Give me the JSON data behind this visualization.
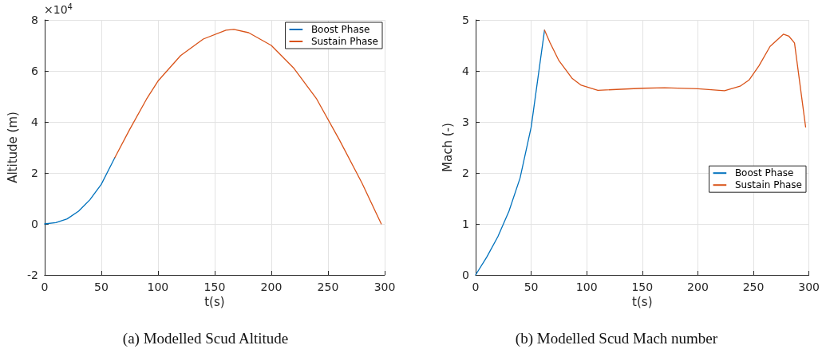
{
  "chart_data": [
    {
      "type": "line",
      "title": "(a) Modelled Scud Altitude",
      "xlabel": "t(s)",
      "ylabel": "Altitude (m)",
      "annotations": [
        "×10$^{4}$"
      ],
      "xlim": [
        0,
        300
      ],
      "xticks": [
        0,
        50,
        100,
        150,
        200,
        250,
        300
      ],
      "ylim": [
        -2,
        8
      ],
      "yticks": [
        -2,
        0,
        2,
        4,
        6,
        8
      ],
      "grid": true,
      "legend": "top right",
      "marker": "none",
      "line_style": "solid",
      "series": [
        {
          "name": "Boost Phase",
          "color": "#0072bd",
          "x": [
            0,
            10,
            20,
            30,
            40,
            50,
            62
          ],
          "values": [
            0,
            0.05,
            0.2,
            0.5,
            0.95,
            1.55,
            2.6
          ]
        },
        {
          "name": "Sustain Phase",
          "color": "#d95319",
          "x": [
            62,
            75,
            90,
            100,
            120,
            140,
            160,
            167,
            180,
            200,
            220,
            240,
            260,
            280,
            297
          ],
          "values": [
            2.6,
            3.7,
            4.9,
            5.6,
            6.6,
            7.25,
            7.6,
            7.63,
            7.5,
            7.0,
            6.1,
            4.9,
            3.3,
            1.6,
            0
          ]
        }
      ]
    },
    {
      "type": "line",
      "title": "(b) Modelled Scud Mach number",
      "xlabel": "t(s)",
      "ylabel": "Mach (-)",
      "xlim": [
        0,
        300
      ],
      "xticks": [
        0,
        50,
        100,
        150,
        200,
        250,
        300
      ],
      "ylim": [
        0,
        5
      ],
      "yticks": [
        0,
        1,
        2,
        3,
        4,
        5
      ],
      "grid": true,
      "legend": "right",
      "marker": "none",
      "line_style": "solid",
      "series": [
        {
          "name": "Boost Phase",
          "color": "#0072bd",
          "x": [
            0,
            10,
            20,
            30,
            40,
            50,
            62
          ],
          "values": [
            0,
            0.35,
            0.75,
            1.25,
            1.9,
            2.9,
            4.8
          ]
        },
        {
          "name": "Sustain Phase",
          "color": "#d95319",
          "x": [
            62,
            67,
            75,
            87,
            95,
            110,
            150,
            170,
            200,
            224,
            238,
            246,
            255,
            265,
            277,
            282,
            287,
            297
          ],
          "values": [
            4.8,
            4.55,
            4.2,
            3.85,
            3.72,
            3.62,
            3.66,
            3.67,
            3.65,
            3.61,
            3.7,
            3.82,
            4.1,
            4.48,
            4.72,
            4.68,
            4.55,
            2.9
          ]
        }
      ]
    }
  ]
}
